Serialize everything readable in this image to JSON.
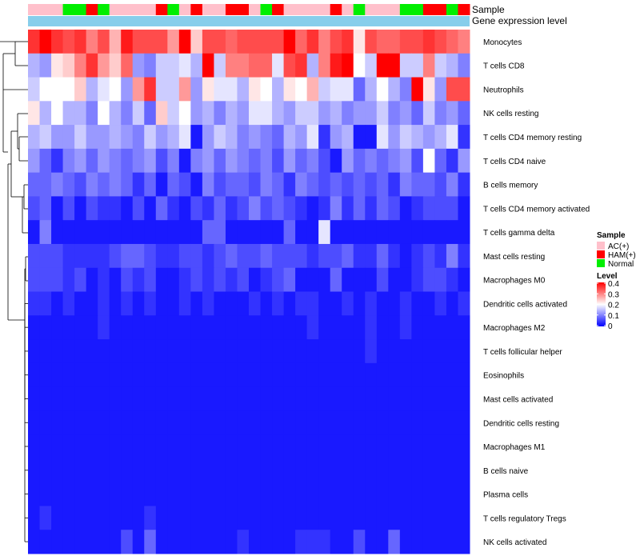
{
  "chart_data": {
    "type": "heatmap",
    "title": "",
    "annotation_tracks": [
      {
        "name": "Sample",
        "label": "Sample"
      },
      {
        "name": "Gene expression level",
        "label": "Gene expression level"
      }
    ],
    "samples": [
      "AC(+)",
      "AC(+)",
      "AC(+)",
      "Normal",
      "Normal",
      "HAM(+)",
      "Normal",
      "AC(+)",
      "AC(+)",
      "AC(+)",
      "AC(+)",
      "HAM(+)",
      "Normal",
      "AC(+)",
      "HAM(+)",
      "AC(+)",
      "AC(+)",
      "HAM(+)",
      "HAM(+)",
      "AC(+)",
      "Normal",
      "HAM(+)",
      "AC(+)",
      "AC(+)",
      "AC(+)",
      "AC(+)",
      "HAM(+)",
      "AC(+)",
      "Normal",
      "AC(+)",
      "AC(+)",
      "AC(+)",
      "Normal",
      "Normal",
      "HAM(+)",
      "HAM(+)",
      "Normal",
      "HAM(+)"
    ],
    "rows": [
      "Monocytes",
      "T cells CD8",
      "Neutrophils",
      "NK cells resting",
      "T cells CD4 memory resting",
      "T cells CD4 naive",
      "B cells memory",
      "T cells CD4 memory activated",
      "T cells gamma delta",
      "Mast cells resting",
      "Macrophages M0",
      "Dendritic cells activated",
      "Macrophages M2",
      "T cells follicular helper",
      "Eosinophils",
      "Mast cells activated",
      "Dendritic cells resting",
      "Macrophages M1",
      "B cells naive",
      "Plasma cells",
      "T cells regulatory  Tregs",
      "NK cells activated"
    ],
    "values": [
      [
        0.36,
        0.4,
        0.36,
        0.34,
        0.36,
        0.3,
        0.34,
        0.26,
        0.38,
        0.34,
        0.34,
        0.34,
        0.28,
        0.4,
        0.24,
        0.34,
        0.34,
        0.32,
        0.34,
        0.34,
        0.34,
        0.34,
        0.4,
        0.32,
        0.36,
        0.3,
        0.34,
        0.36,
        0.22,
        0.34,
        0.32,
        0.32,
        0.34,
        0.34,
        0.36,
        0.34,
        0.32,
        0.3
      ],
      [
        0.14,
        0.12,
        0.22,
        0.24,
        0.3,
        0.36,
        0.28,
        0.24,
        0.32,
        0.12,
        0.1,
        0.16,
        0.16,
        0.18,
        0.14,
        0.4,
        0.16,
        0.3,
        0.3,
        0.32,
        0.32,
        0.18,
        0.34,
        0.36,
        0.14,
        0.3,
        0.38,
        0.4,
        0.2,
        0.16,
        0.4,
        0.4,
        0.16,
        0.16,
        0.3,
        0.16,
        0.14,
        0.1
      ],
      [
        0.16,
        0.2,
        0.2,
        0.2,
        0.24,
        0.14,
        0.18,
        0.2,
        0.12,
        0.28,
        0.36,
        0.16,
        0.16,
        0.28,
        0.12,
        0.22,
        0.18,
        0.18,
        0.14,
        0.22,
        0.2,
        0.14,
        0.22,
        0.2,
        0.26,
        0.16,
        0.18,
        0.18,
        0.08,
        0.14,
        0.2,
        0.14,
        0.1,
        0.4,
        0.22,
        0.12,
        0.34,
        0.34
      ],
      [
        0.22,
        0.14,
        0.2,
        0.14,
        0.14,
        0.1,
        0.2,
        0.14,
        0.1,
        0.16,
        0.08,
        0.24,
        0.16,
        0.2,
        0.12,
        0.14,
        0.1,
        0.14,
        0.12,
        0.18,
        0.18,
        0.14,
        0.12,
        0.16,
        0.16,
        0.12,
        0.14,
        0.1,
        0.12,
        0.12,
        0.16,
        0.1,
        0.12,
        0.08,
        0.16,
        0.1,
        0.12,
        0.08
      ],
      [
        0.14,
        0.16,
        0.12,
        0.12,
        0.16,
        0.12,
        0.12,
        0.14,
        0.12,
        0.1,
        0.16,
        0.12,
        0.14,
        0.18,
        0.02,
        0.12,
        0.16,
        0.14,
        0.1,
        0.12,
        0.1,
        0.08,
        0.14,
        0.12,
        0.18,
        0.04,
        0.12,
        0.14,
        0.02,
        0.02,
        0.18,
        0.12,
        0.16,
        0.14,
        0.12,
        0.14,
        0.18,
        0.04
      ],
      [
        0.12,
        0.08,
        0.04,
        0.1,
        0.12,
        0.08,
        0.12,
        0.1,
        0.08,
        0.1,
        0.12,
        0.06,
        0.1,
        0.02,
        0.1,
        0.12,
        0.08,
        0.12,
        0.1,
        0.08,
        0.1,
        0.06,
        0.12,
        0.08,
        0.1,
        0.06,
        0.02,
        0.12,
        0.08,
        0.1,
        0.08,
        0.1,
        0.12,
        0.06,
        0.2,
        0.08,
        0.04,
        0.12
      ],
      [
        0.08,
        0.08,
        0.1,
        0.08,
        0.06,
        0.1,
        0.08,
        0.1,
        0.08,
        0.04,
        0.08,
        0.02,
        0.08,
        0.06,
        0.02,
        0.1,
        0.06,
        0.08,
        0.08,
        0.06,
        0.1,
        0.08,
        0.04,
        0.1,
        0.08,
        0.06,
        0.08,
        0.06,
        0.08,
        0.06,
        0.08,
        0.04,
        0.1,
        0.08,
        0.08,
        0.06,
        0.1,
        0.04
      ],
      [
        0.06,
        0.08,
        0.02,
        0.06,
        0.02,
        0.06,
        0.04,
        0.04,
        0.02,
        0.06,
        0.02,
        0.08,
        0.04,
        0.02,
        0.06,
        0.04,
        0.08,
        0.04,
        0.06,
        0.1,
        0.06,
        0.08,
        0.06,
        0.04,
        0.02,
        0.04,
        0.1,
        0.04,
        0.08,
        0.04,
        0.08,
        0.06,
        0.02,
        0.04,
        0.06,
        0.06,
        0.06,
        0.02
      ],
      [
        0.02,
        0.1,
        0.02,
        0.02,
        0.02,
        0.02,
        0.02,
        0.02,
        0.02,
        0.02,
        0.02,
        0.02,
        0.02,
        0.02,
        0.02,
        0.08,
        0.08,
        0.02,
        0.02,
        0.02,
        0.02,
        0.02,
        0.08,
        0.02,
        0.02,
        0.18,
        0.02,
        0.02,
        0.02,
        0.02,
        0.02,
        0.02,
        0.02,
        0.02,
        0.02,
        0.02,
        0.02,
        0.02
      ],
      [
        0.06,
        0.06,
        0.06,
        0.04,
        0.04,
        0.04,
        0.04,
        0.06,
        0.08,
        0.08,
        0.06,
        0.04,
        0.04,
        0.06,
        0.06,
        0.04,
        0.06,
        0.08,
        0.06,
        0.06,
        0.08,
        0.06,
        0.06,
        0.06,
        0.04,
        0.06,
        0.06,
        0.08,
        0.04,
        0.04,
        0.08,
        0.04,
        0.02,
        0.04,
        0.06,
        0.04,
        0.1,
        0.04
      ],
      [
        0.06,
        0.06,
        0.06,
        0.04,
        0.06,
        0.02,
        0.04,
        0.02,
        0.06,
        0.04,
        0.06,
        0.02,
        0.02,
        0.04,
        0.06,
        0.04,
        0.06,
        0.04,
        0.06,
        0.02,
        0.04,
        0.06,
        0.08,
        0.02,
        0.02,
        0.02,
        0.08,
        0.02,
        0.02,
        0.02,
        0.06,
        0.02,
        0.02,
        0.04,
        0.06,
        0.06,
        0.04,
        0.02
      ],
      [
        0.04,
        0.04,
        0.02,
        0.04,
        0.02,
        0.02,
        0.04,
        0.02,
        0.04,
        0.02,
        0.04,
        0.02,
        0.02,
        0.04,
        0.02,
        0.04,
        0.02,
        0.02,
        0.02,
        0.04,
        0.02,
        0.04,
        0.02,
        0.04,
        0.04,
        0.02,
        0.02,
        0.04,
        0.02,
        0.04,
        0.02,
        0.02,
        0.04,
        0.02,
        0.02,
        0.04,
        0.02,
        0.04
      ],
      [
        0.02,
        0.02,
        0.02,
        0.02,
        0.02,
        0.02,
        0.04,
        0.02,
        0.02,
        0.02,
        0.02,
        0.02,
        0.02,
        0.02,
        0.02,
        0.02,
        0.02,
        0.02,
        0.02,
        0.02,
        0.02,
        0.02,
        0.02,
        0.02,
        0.04,
        0.02,
        0.02,
        0.02,
        0.02,
        0.04,
        0.02,
        0.02,
        0.04,
        0.02,
        0.02,
        0.02,
        0.02,
        0.02
      ],
      [
        0.02,
        0.02,
        0.02,
        0.02,
        0.02,
        0.02,
        0.02,
        0.02,
        0.02,
        0.02,
        0.02,
        0.02,
        0.02,
        0.02,
        0.02,
        0.02,
        0.02,
        0.02,
        0.02,
        0.02,
        0.02,
        0.02,
        0.02,
        0.02,
        0.02,
        0.02,
        0.02,
        0.02,
        0.02,
        0.04,
        0.02,
        0.02,
        0.02,
        0.02,
        0.02,
        0.02,
        0.02,
        0.02
      ],
      [
        0.02,
        0.02,
        0.02,
        0.02,
        0.02,
        0.02,
        0.02,
        0.02,
        0.02,
        0.02,
        0.02,
        0.02,
        0.02,
        0.02,
        0.02,
        0.02,
        0.02,
        0.02,
        0.02,
        0.02,
        0.02,
        0.02,
        0.02,
        0.02,
        0.02,
        0.02,
        0.02,
        0.02,
        0.02,
        0.02,
        0.02,
        0.02,
        0.02,
        0.02,
        0.02,
        0.02,
        0.02,
        0.02
      ],
      [
        0.02,
        0.02,
        0.02,
        0.02,
        0.02,
        0.02,
        0.02,
        0.02,
        0.02,
        0.02,
        0.02,
        0.02,
        0.02,
        0.02,
        0.02,
        0.02,
        0.02,
        0.02,
        0.02,
        0.02,
        0.02,
        0.02,
        0.02,
        0.02,
        0.02,
        0.02,
        0.02,
        0.02,
        0.02,
        0.02,
        0.02,
        0.02,
        0.02,
        0.02,
        0.02,
        0.02,
        0.02,
        0.02
      ],
      [
        0.02,
        0.02,
        0.02,
        0.02,
        0.02,
        0.02,
        0.02,
        0.02,
        0.02,
        0.02,
        0.02,
        0.02,
        0.02,
        0.02,
        0.02,
        0.02,
        0.02,
        0.02,
        0.02,
        0.02,
        0.02,
        0.02,
        0.02,
        0.02,
        0.02,
        0.02,
        0.02,
        0.02,
        0.02,
        0.02,
        0.02,
        0.02,
        0.02,
        0.02,
        0.02,
        0.02,
        0.02,
        0.02
      ],
      [
        0.02,
        0.02,
        0.02,
        0.02,
        0.02,
        0.02,
        0.02,
        0.02,
        0.02,
        0.02,
        0.02,
        0.02,
        0.02,
        0.02,
        0.02,
        0.02,
        0.02,
        0.02,
        0.02,
        0.02,
        0.02,
        0.02,
        0.02,
        0.02,
        0.02,
        0.02,
        0.02,
        0.02,
        0.02,
        0.02,
        0.02,
        0.02,
        0.02,
        0.02,
        0.02,
        0.02,
        0.02,
        0.02
      ],
      [
        0.02,
        0.02,
        0.02,
        0.02,
        0.02,
        0.02,
        0.02,
        0.02,
        0.02,
        0.02,
        0.02,
        0.02,
        0.02,
        0.02,
        0.02,
        0.02,
        0.02,
        0.02,
        0.02,
        0.02,
        0.02,
        0.02,
        0.02,
        0.02,
        0.02,
        0.02,
        0.02,
        0.02,
        0.02,
        0.02,
        0.02,
        0.02,
        0.02,
        0.02,
        0.02,
        0.02,
        0.02,
        0.02
      ],
      [
        0.02,
        0.02,
        0.02,
        0.02,
        0.02,
        0.02,
        0.02,
        0.02,
        0.02,
        0.02,
        0.02,
        0.02,
        0.02,
        0.02,
        0.02,
        0.02,
        0.02,
        0.02,
        0.02,
        0.02,
        0.02,
        0.02,
        0.02,
        0.02,
        0.02,
        0.02,
        0.02,
        0.02,
        0.02,
        0.02,
        0.02,
        0.02,
        0.02,
        0.02,
        0.02,
        0.02,
        0.02,
        0.02
      ],
      [
        0.02,
        0.04,
        0.02,
        0.02,
        0.02,
        0.02,
        0.02,
        0.02,
        0.02,
        0.02,
        0.04,
        0.02,
        0.02,
        0.02,
        0.02,
        0.02,
        0.02,
        0.02,
        0.02,
        0.02,
        0.02,
        0.02,
        0.02,
        0.02,
        0.02,
        0.02,
        0.02,
        0.02,
        0.02,
        0.02,
        0.02,
        0.02,
        0.02,
        0.02,
        0.02,
        0.02,
        0.02,
        0.02
      ],
      [
        0.02,
        0.02,
        0.02,
        0.02,
        0.02,
        0.02,
        0.02,
        0.02,
        0.06,
        0.02,
        0.08,
        0.02,
        0.02,
        0.02,
        0.02,
        0.02,
        0.02,
        0.02,
        0.04,
        0.02,
        0.02,
        0.02,
        0.02,
        0.04,
        0.04,
        0.04,
        0.02,
        0.02,
        0.06,
        0.02,
        0.02,
        0.08,
        0.02,
        0.02,
        0.02,
        0.02,
        0.02,
        0.02
      ]
    ],
    "colorscale": {
      "low": "#0000ff",
      "mid": "#ffffff",
      "high": "#ff0000",
      "domain": [
        0,
        0.2,
        0.4
      ]
    },
    "legends": {
      "sample": {
        "title": "Sample",
        "items": [
          {
            "label": "AC(+)",
            "color": "#ffc0cb"
          },
          {
            "label": "HAM(+)",
            "color": "#ff0000"
          },
          {
            "label": "Normal",
            "color": "#00ee00"
          }
        ]
      },
      "level": {
        "title": "Level",
        "ticks": [
          {
            "label": "0.4",
            "value": 0.4
          },
          {
            "label": "0.3",
            "value": 0.3
          },
          {
            "label": "0.2",
            "value": 0.2
          },
          {
            "label": "0.1",
            "value": 0.1
          },
          {
            "label": "0",
            "value": 0
          }
        ]
      }
    },
    "gene_expression_color": "#87ceeb"
  }
}
